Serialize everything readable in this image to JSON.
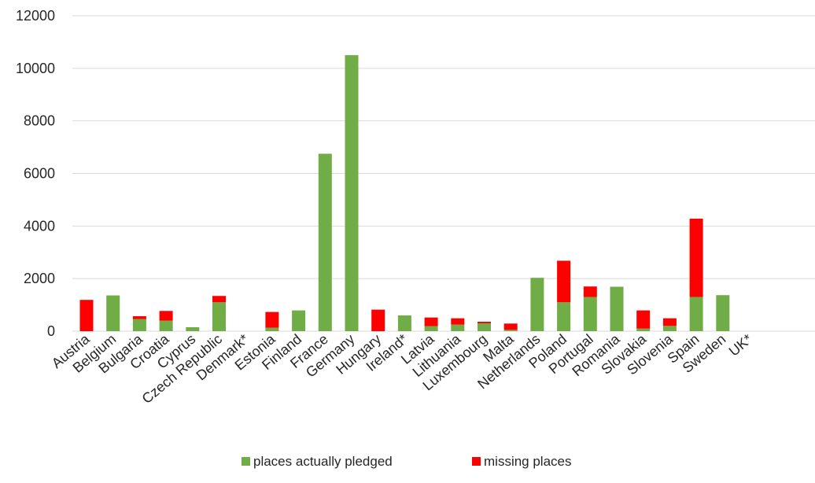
{
  "chart_data": {
    "type": "bar",
    "stacked": true,
    "categories": [
      "Austria",
      "Belgium",
      "Bulgaria",
      "Croatia",
      "Cyprus",
      "Czech Republic",
      "Denmark*",
      "Estonia",
      "Finland",
      "France",
      "Germany",
      "Hungary",
      "Ireland*",
      "Latvia",
      "Lithuania",
      "Luxembourg",
      "Malta",
      "Netherlands",
      "Poland",
      "Portugal",
      "Romania",
      "Slovakia",
      "Slovenia",
      "Spain",
      "Sweden",
      "UK*"
    ],
    "series": [
      {
        "name": "places actually pledged",
        "color": "#70ad47",
        "values": [
          0,
          1360,
          460,
          400,
          150,
          1100,
          0,
          130,
          790,
          6750,
          10500,
          0,
          600,
          190,
          250,
          300,
          50,
          2030,
          1100,
          1300,
          1690,
          100,
          200,
          1300,
          1370,
          0
        ]
      },
      {
        "name": "missing places",
        "color": "#ff0000",
        "values": [
          1190,
          0,
          110,
          370,
          0,
          240,
          0,
          600,
          0,
          0,
          0,
          820,
          0,
          330,
          240,
          60,
          240,
          0,
          1580,
          400,
          0,
          690,
          290,
          2980,
          0,
          0
        ]
      }
    ],
    "ylim": [
      0,
      12000
    ],
    "yticks": [
      0,
      2000,
      4000,
      6000,
      8000,
      10000,
      12000
    ],
    "grid": true,
    "legend_position": "bottom"
  }
}
